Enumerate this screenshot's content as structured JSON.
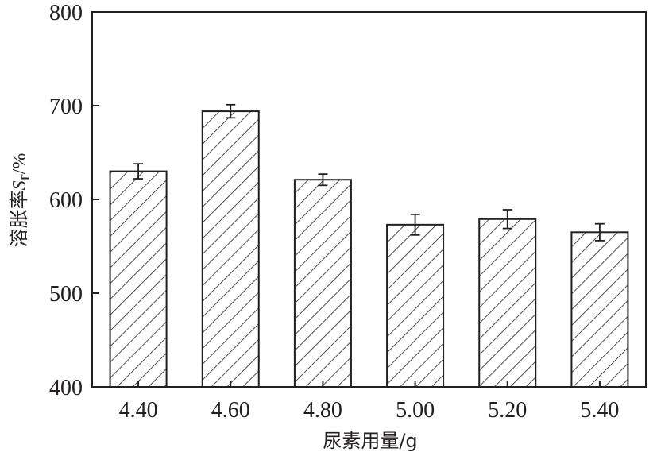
{
  "chart_data": {
    "type": "bar",
    "categories": [
      "4.40",
      "4.60",
      "4.80",
      "5.00",
      "5.20",
      "5.40"
    ],
    "values": [
      630,
      694,
      621,
      573,
      579,
      565
    ],
    "errors": [
      8,
      7,
      6,
      11,
      10,
      9
    ],
    "xlabel": "尿素用量/g",
    "ylabel": {
      "prefix": "溶胀率",
      "symbol": "S",
      "subscript": "r",
      "suffix": "/%"
    },
    "ylim": [
      400,
      800
    ],
    "yticks": [
      "400",
      "500",
      "600",
      "700",
      "800"
    ],
    "grid": false,
    "bar_fill": "diagonal-hatch",
    "colors": {
      "ink": "#231f20",
      "background": "#ffffff"
    }
  }
}
